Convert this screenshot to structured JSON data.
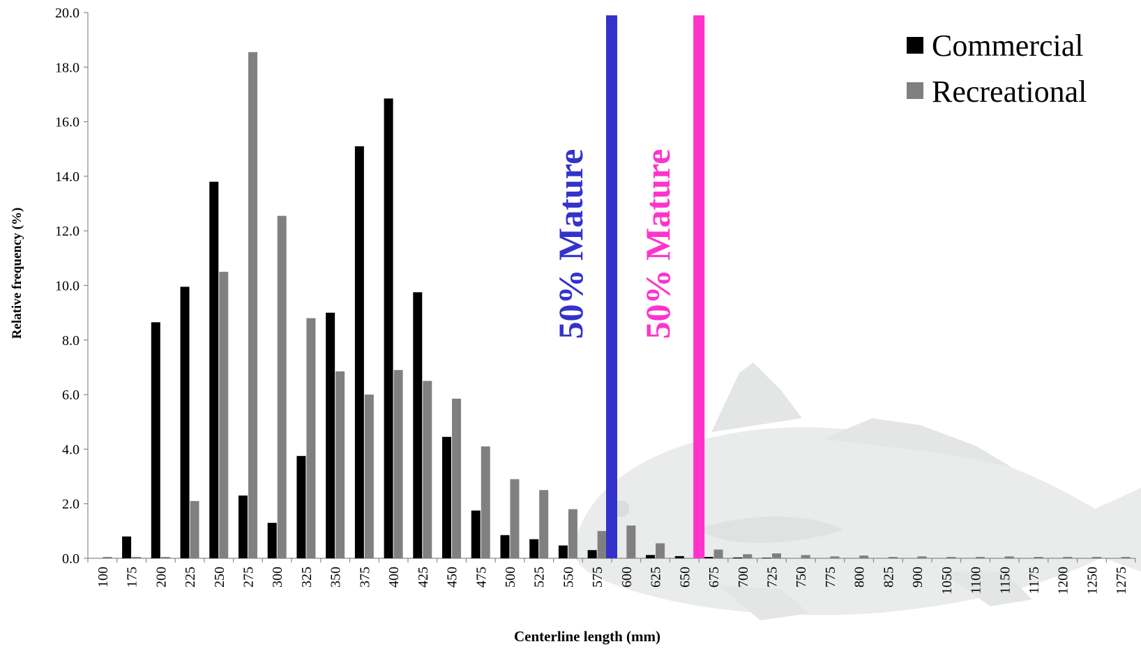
{
  "chart_data": {
    "type": "bar",
    "xlabel": "Centerline length (mm)",
    "ylabel": "Relative frequency (%)",
    "ylim": [
      0,
      20
    ],
    "yticks": [
      "0.0",
      "2.0",
      "4.0",
      "6.0",
      "8.0",
      "10.0",
      "12.0",
      "14.0",
      "16.0",
      "18.0",
      "20.0"
    ],
    "categories": [
      "100",
      "175",
      "200",
      "225",
      "250",
      "275",
      "300",
      "325",
      "350",
      "375",
      "400",
      "425",
      "450",
      "475",
      "500",
      "525",
      "550",
      "575",
      "600",
      "625",
      "650",
      "675",
      "700",
      "725",
      "750",
      "775",
      "800",
      "825",
      "900",
      "1050",
      "1100",
      "1150",
      "1175",
      "1200",
      "1250",
      "1275"
    ],
    "series": [
      {
        "name": "Commercial",
        "color": "#000000",
        "values": [
          0.0,
          0.8,
          8.65,
          9.95,
          13.8,
          2.3,
          1.3,
          3.75,
          9.0,
          15.1,
          16.85,
          9.75,
          4.45,
          1.75,
          0.85,
          0.7,
          0.47,
          0.3,
          0.0,
          0.12,
          0.08,
          0.05,
          0.03,
          0.02,
          0.0,
          0.0,
          0.0,
          0.0,
          0.0,
          0.0,
          0.0,
          0.0,
          0.0,
          0.0,
          0.0,
          0.0
        ]
      },
      {
        "name": "Recreational",
        "color": "#808080",
        "values": [
          0.05,
          0.05,
          0.05,
          2.1,
          10.5,
          18.55,
          12.55,
          8.8,
          6.85,
          6.0,
          6.9,
          6.5,
          5.85,
          4.1,
          2.9,
          2.5,
          1.8,
          1.0,
          1.2,
          0.55,
          0.0,
          0.32,
          0.15,
          0.18,
          0.12,
          0.07,
          0.1,
          0.05,
          0.07,
          0.05,
          0.05,
          0.07,
          0.05,
          0.05,
          0.05,
          0.05
        ]
      }
    ],
    "reference_lines": [
      {
        "x_position_category": "600",
        "offset": -0.5,
        "label": "50% Mature",
        "color": "#3333cc"
      },
      {
        "x_position_category": "650",
        "offset": 0.5,
        "label": "50% Mature",
        "color": "#ff33cc"
      }
    ],
    "legend_position": "top-right",
    "grid": false
  }
}
